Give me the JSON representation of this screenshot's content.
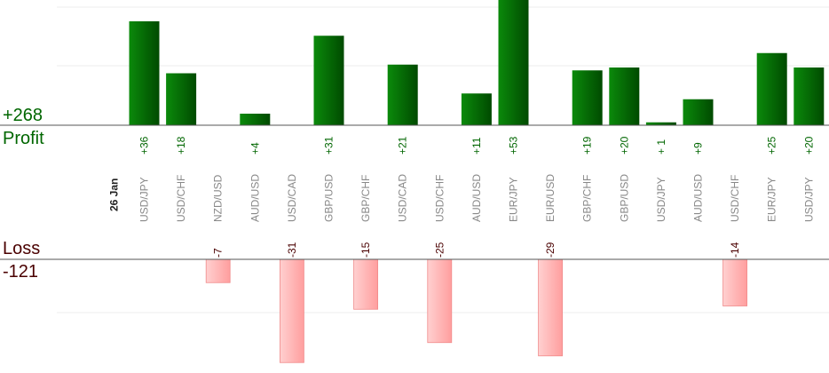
{
  "summary": {
    "profit_total": "+268",
    "profit_label": "Profit",
    "loss_label": "Loss",
    "loss_total": "-121"
  },
  "colors": {
    "profit_bar": "#006600",
    "profit_text": "#006600",
    "loss_bar": "#ffb0b0",
    "loss_text": "#4a0000",
    "pair_text": "#888888"
  },
  "chart_data": {
    "type": "bar",
    "date_label": "26 Jan",
    "categories": [
      "USD/JPY",
      "USD/CHF",
      "NZD/USD",
      "AUD/USD",
      "USD/CAD",
      "GBP/USD",
      "GBP/CHF",
      "USD/CAD",
      "USD/CHF",
      "AUD/USD",
      "EUR/JPY",
      "EUR/USD",
      "GBP/CHF",
      "GBP/USD",
      "USD/JPY",
      "AUD/USD",
      "USD/CHF",
      "EUR/JPY",
      "USD/JPY"
    ],
    "series": [
      {
        "values": [
          36,
          18,
          -7,
          4,
          -31,
          31,
          -15,
          21,
          -25,
          11,
          53,
          -29,
          19,
          20,
          1,
          9,
          -14,
          25,
          20
        ]
      }
    ],
    "profit_labels": [
      "+36",
      "+18",
      "",
      "+4",
      "",
      "+31",
      "",
      "+21",
      "",
      "+11",
      "+53",
      "",
      "+19",
      "+20",
      "+ 1",
      "+9",
      "",
      "+25",
      "+20"
    ],
    "loss_labels": [
      "",
      "",
      "-7",
      "",
      "-31",
      "",
      "-15",
      "",
      "-25",
      "",
      "",
      "-29",
      "",
      "",
      "",
      "",
      "-14",
      "",
      ""
    ],
    "grid": true
  }
}
